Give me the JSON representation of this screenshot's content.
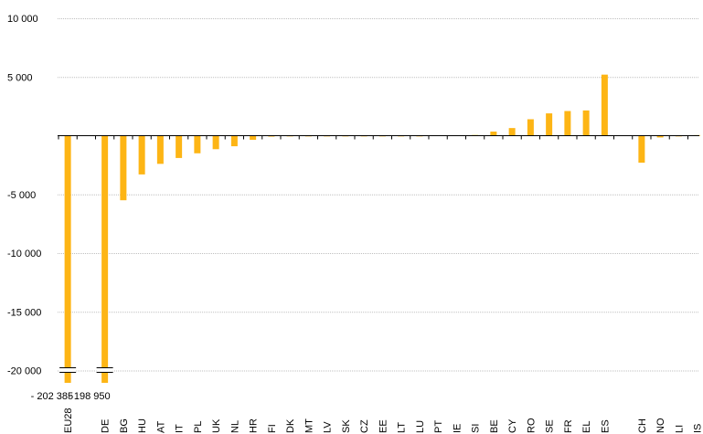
{
  "chart_data": {
    "type": "bar",
    "title": "",
    "xlabel": "",
    "ylabel": "",
    "ylim": [
      -21000,
      10000
    ],
    "yticks": [
      10000,
      5000,
      0,
      -5000,
      -10000,
      -15000,
      -20000
    ],
    "ytick_labels": [
      "10 000",
      "5 000",
      "",
      "-5 000",
      "-10 000",
      "-15 000",
      "-20 000"
    ],
    "grid": true,
    "axis_break": true,
    "bar_color": "#FDB515",
    "grid_color": "#BFBFBF",
    "categories": [
      "EU28",
      "",
      "DE",
      "BG",
      "HU",
      "AT",
      "IT",
      "PL",
      "UK",
      "NL",
      "HR",
      "FI",
      "DK",
      "MT",
      "LV",
      "SK",
      "CZ",
      "EE",
      "LT",
      "LU",
      "PT",
      "IE",
      "SI",
      "BE",
      "CY",
      "RO",
      "SE",
      "FR",
      "EL",
      "ES",
      "",
      "CH",
      "NO",
      "LI",
      "IS"
    ],
    "values": [
      -202385,
      null,
      -198950,
      -5500,
      -3300,
      -2400,
      -1900,
      -1500,
      -1150,
      -900,
      -350,
      -80,
      -60,
      -50,
      -40,
      -40,
      -30,
      -20,
      -10,
      -5,
      0,
      40,
      60,
      350,
      650,
      1400,
      1900,
      2100,
      2150,
      5200,
      null,
      -2300,
      -150,
      -30,
      50
    ],
    "break_labels": [
      "- 202 385",
      "- 198 950"
    ]
  }
}
